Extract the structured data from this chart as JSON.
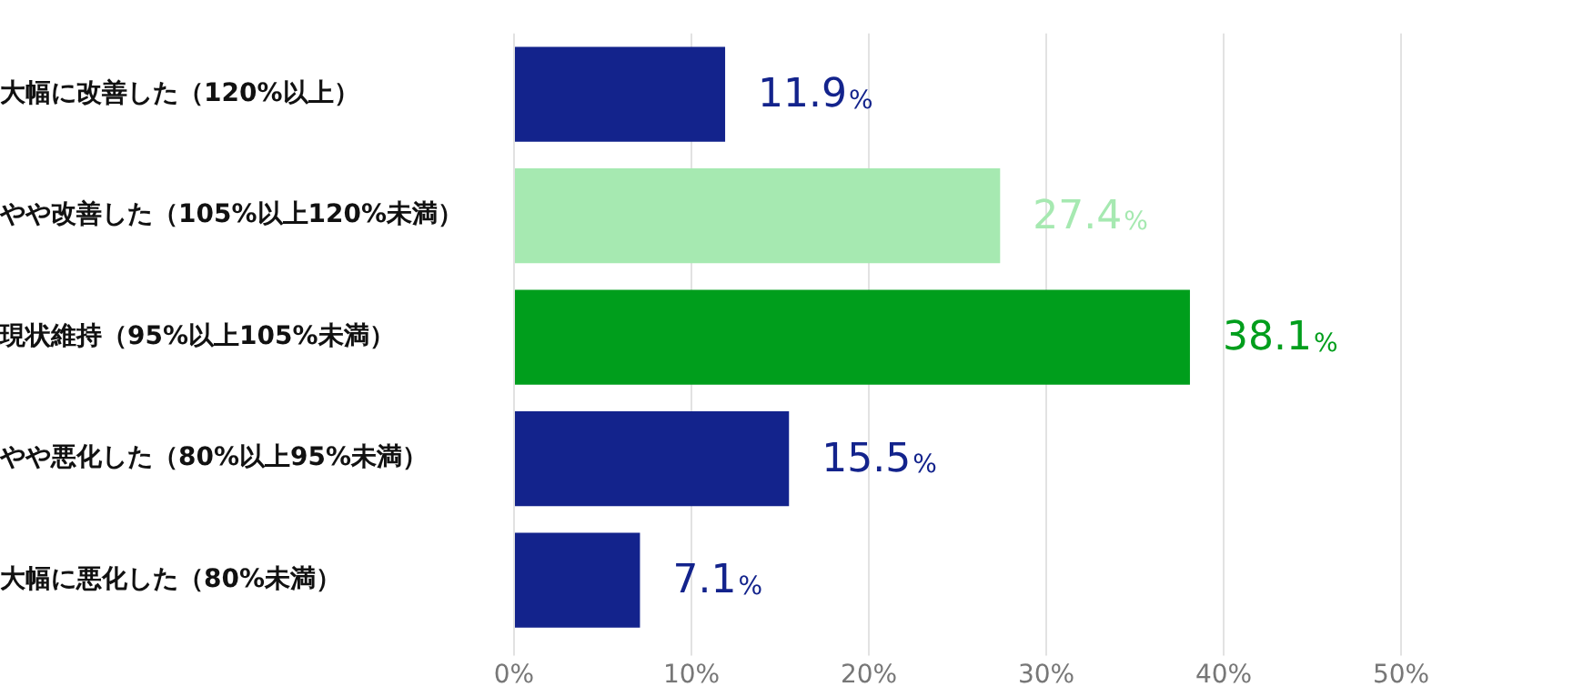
{
  "chart_data": {
    "type": "bar",
    "orientation": "horizontal",
    "categories": [
      "大幅に改善した（120%以上）",
      "やや改善した（105%以上120%未満）",
      "現状維持（95%以上105%未満）",
      "やや悪化した（80%以上95%未満）",
      "大幅に悪化した（80%未満）"
    ],
    "values": [
      11.9,
      27.4,
      38.1,
      15.5,
      7.1
    ],
    "colors": [
      "#13238c",
      "#a6e9b1",
      "#009e1c",
      "#13238c",
      "#13238c"
    ],
    "value_labels": [
      "11.9%",
      "27.4%",
      "38.1%",
      "15.5%",
      "7.1%"
    ],
    "xlim": [
      0,
      50
    ],
    "xticks": [
      {
        "value": 0,
        "label": "0%"
      },
      {
        "value": 10,
        "label": "10%"
      },
      {
        "value": 20,
        "label": "20%"
      },
      {
        "value": 30,
        "label": "30%"
      },
      {
        "value": 40,
        "label": "40%"
      },
      {
        "value": 50,
        "label": "50%"
      }
    ],
    "grid": "x",
    "legend": false
  }
}
